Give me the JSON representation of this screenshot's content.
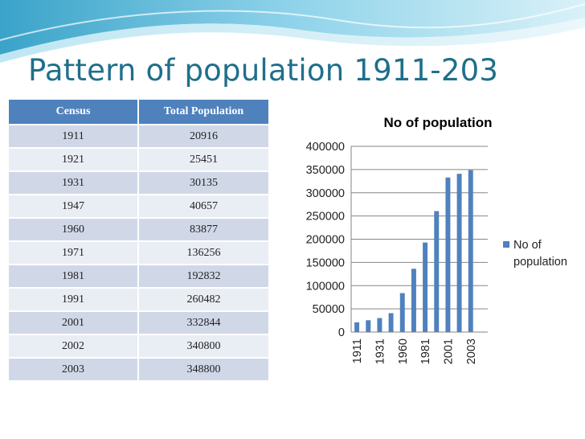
{
  "slide": {
    "title": "Pattern of population 1911-203"
  },
  "table": {
    "headers": [
      "Census",
      "Total Population"
    ],
    "rows": [
      [
        "1911",
        "20916"
      ],
      [
        "1921",
        "25451"
      ],
      [
        "1931",
        "30135"
      ],
      [
        "1947",
        "40657"
      ],
      [
        "1960",
        "83877"
      ],
      [
        "1971",
        "136256"
      ],
      [
        "1981",
        "192832"
      ],
      [
        "1991",
        "260482"
      ],
      [
        "2001",
        "332844"
      ],
      [
        "2002",
        "340800"
      ],
      [
        "2003",
        "348800"
      ]
    ]
  },
  "chart_data": {
    "type": "bar",
    "title": "No of population",
    "categories": [
      "1911",
      "1921",
      "1931",
      "1947",
      "1960",
      "1971",
      "1981",
      "1991",
      "2001",
      "2002",
      "2003"
    ],
    "x_tick_labels": [
      "1911",
      "1931",
      "1960",
      "1981",
      "2001",
      "2003"
    ],
    "series": [
      {
        "name": "No of population",
        "values": [
          20916,
          25451,
          30135,
          40657,
          83877,
          136256,
          192832,
          260482,
          332844,
          340800,
          348800
        ]
      }
    ],
    "ylim": [
      0,
      400000
    ],
    "yticks": [
      0,
      50000,
      100000,
      150000,
      200000,
      250000,
      300000,
      350000,
      400000
    ],
    "grid": true,
    "legend_position": "right",
    "colors": {
      "bar": "#4f81bd",
      "grid": "#868686",
      "title_header": "#1f6f8b"
    }
  }
}
